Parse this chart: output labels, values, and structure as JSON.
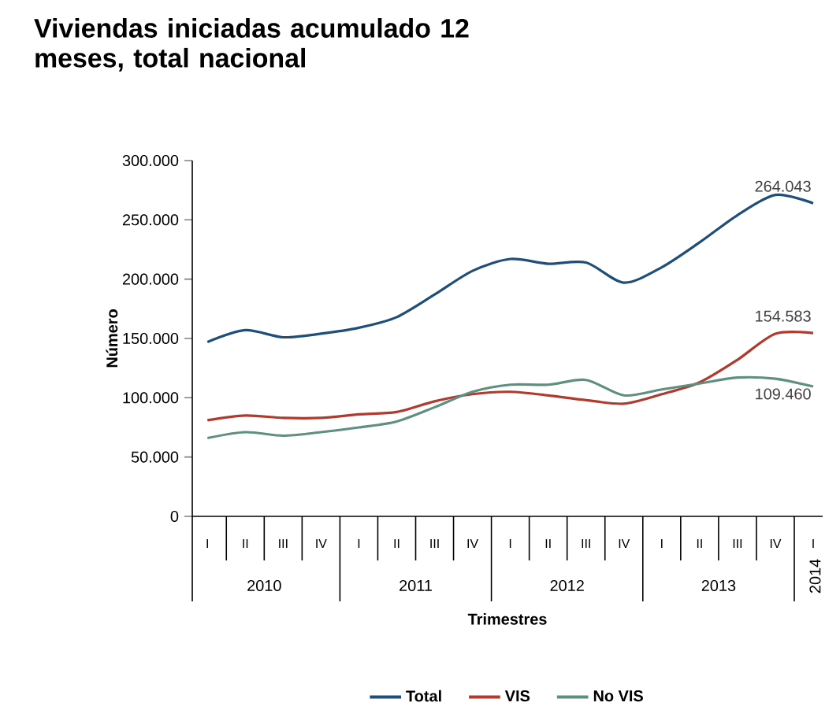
{
  "chart_data": {
    "type": "line",
    "title": "Viviendas iniciadas acumulado 12 meses, total nacional",
    "xlabel": "Trimestres",
    "ylabel": "Número",
    "categories": [
      "I",
      "II",
      "III",
      "IV",
      "I",
      "II",
      "III",
      "IV",
      "I",
      "II",
      "III",
      "IV",
      "I",
      "II",
      "III",
      "IV",
      "I"
    ],
    "annotations": [
      "2010",
      "2011",
      "2012",
      "2013",
      "2014"
    ],
    "ylim": [
      0,
      300000
    ],
    "yticks": [
      {
        "value": 0,
        "label": "0"
      },
      {
        "value": 50000,
        "label": "50.000"
      },
      {
        "value": 100000,
        "label": "100.000"
      },
      {
        "value": 150000,
        "label": "150.000"
      },
      {
        "value": 200000,
        "label": "200.000"
      },
      {
        "value": 250000,
        "label": "250.000"
      },
      {
        "value": 300000,
        "label": "300.000"
      }
    ],
    "series": [
      {
        "name": "Total",
        "color": "#1f4e79",
        "values": [
          147000,
          157000,
          151000,
          154000,
          159000,
          168000,
          187000,
          207000,
          217000,
          213000,
          214000,
          197000,
          210000,
          231000,
          254000,
          271000,
          264043
        ],
        "value_labels": [
          null,
          null,
          null,
          null,
          null,
          null,
          null,
          null,
          null,
          null,
          null,
          null,
          null,
          null,
          null,
          null,
          "264.043"
        ]
      },
      {
        "name": "VIS",
        "color": "#b03a2e",
        "values": [
          81000,
          85000,
          83000,
          83000,
          86000,
          88000,
          97000,
          103000,
          105000,
          102000,
          98000,
          95000,
          103000,
          113000,
          132000,
          154000,
          154583
        ],
        "value_labels": [
          null,
          null,
          null,
          null,
          null,
          null,
          null,
          null,
          null,
          null,
          null,
          null,
          null,
          null,
          null,
          null,
          "154.583"
        ]
      },
      {
        "name": "No VIS",
        "color": "#5f8f80",
        "values": [
          66000,
          71000,
          68000,
          71000,
          75000,
          80000,
          92000,
          105000,
          111000,
          111000,
          115000,
          102000,
          107000,
          112000,
          117000,
          116000,
          109460
        ],
        "value_labels": [
          null,
          null,
          null,
          null,
          null,
          null,
          null,
          null,
          null,
          null,
          null,
          null,
          null,
          null,
          null,
          null,
          "109.460"
        ]
      }
    ],
    "legend": "bottom",
    "grid": false,
    "marker": "none",
    "line_style": "solid"
  }
}
